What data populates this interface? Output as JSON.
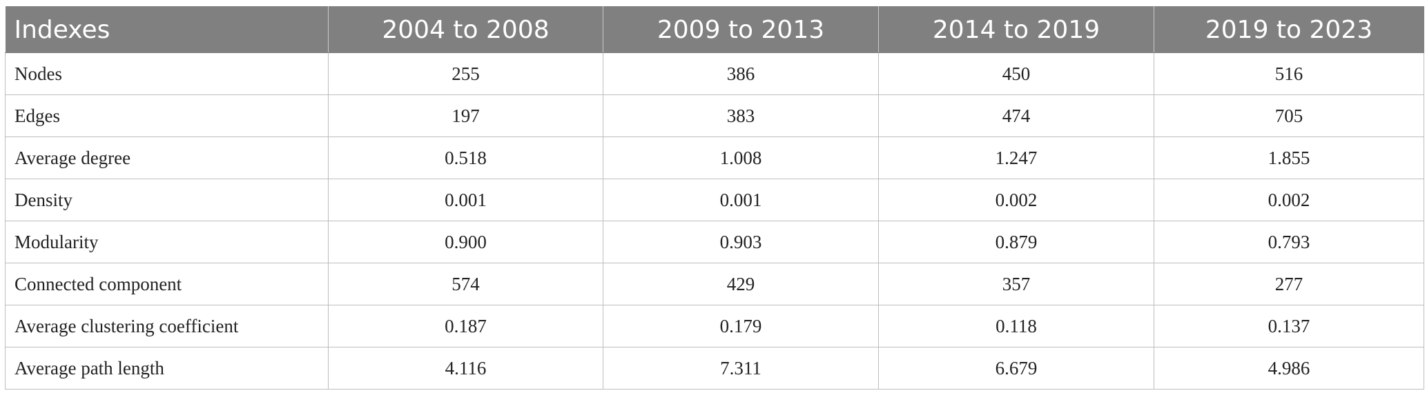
{
  "table": {
    "headers": [
      "Indexes",
      "2004 to 2008",
      "2009 to 2013",
      "2014 to 2019",
      "2019 to 2023"
    ],
    "rows": [
      [
        "Nodes",
        "255",
        "386",
        "450",
        "516"
      ],
      [
        "Edges",
        "197",
        "383",
        "474",
        "705"
      ],
      [
        "Average degree",
        "0.518",
        "1.008",
        "1.247",
        "1.855"
      ],
      [
        "Density",
        "0.001",
        "0.001",
        "0.002",
        "0.002"
      ],
      [
        "Modularity",
        "0.900",
        "0.903",
        "0.879",
        "0.793"
      ],
      [
        "Connected component",
        "574",
        "429",
        "357",
        "277"
      ],
      [
        "Average clustering coefficient",
        "0.187",
        "0.179",
        "0.118",
        "0.137"
      ],
      [
        "Average path length",
        "4.116",
        "7.311",
        "6.679",
        "4.986"
      ]
    ]
  },
  "colors": {
    "header_bg": "#7f807f",
    "header_text": "#ffffff",
    "grid": "#bdbdbd",
    "body_text": "#222222"
  }
}
